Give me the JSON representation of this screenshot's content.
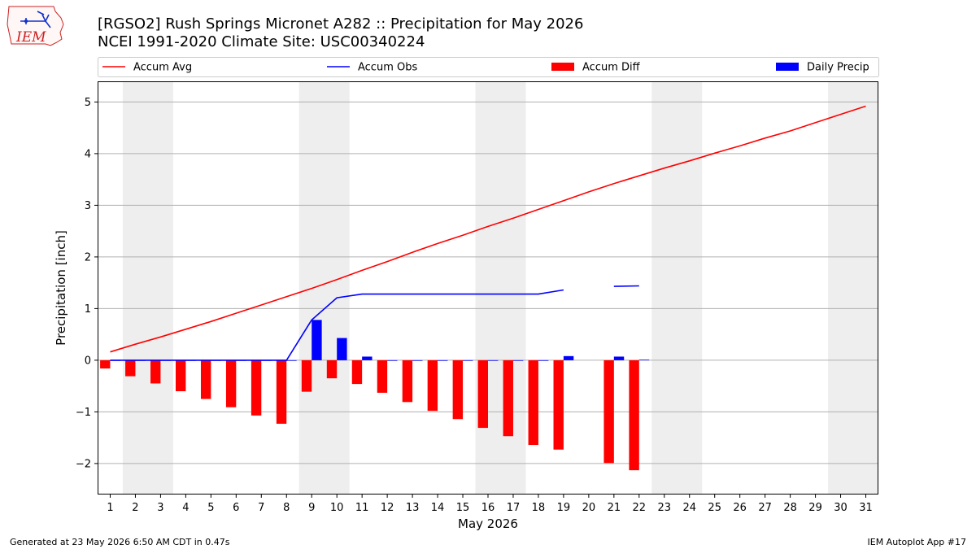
{
  "logo": {
    "text": "IEM"
  },
  "chart_data": {
    "type": "bar+line",
    "title": "[RGSO2] Rush Springs Micronet A282 :: Precipitation for May 2026",
    "subtitle": "NCEI 1991-2020 Climate Site: USC00340224",
    "xlabel": "May 2026",
    "ylabel": "Precipitation [inch]",
    "xlim": [
      0.5,
      31.5
    ],
    "ylim": [
      -2.6,
      5.4
    ],
    "yticks": [
      -2,
      -1,
      0,
      1,
      2,
      3,
      4,
      5
    ],
    "ytick_labels": [
      "−2",
      "−1",
      "0",
      "1",
      "2",
      "3",
      "4",
      "5"
    ],
    "days": [
      1,
      2,
      3,
      4,
      5,
      6,
      7,
      8,
      9,
      10,
      11,
      12,
      13,
      14,
      15,
      16,
      17,
      18,
      19,
      20,
      21,
      22,
      23,
      24,
      25,
      26,
      27,
      28,
      29,
      30,
      31
    ],
    "weekend_spans": [
      [
        1.5,
        3.5
      ],
      [
        8.5,
        10.5
      ],
      [
        15.5,
        17.5
      ],
      [
        22.5,
        24.5
      ],
      [
        29.5,
        31.5
      ]
    ],
    "grid": "horizontal",
    "legend_position": "top",
    "legend": [
      {
        "label": "Accum Avg",
        "kind": "line",
        "color": "#ff0000"
      },
      {
        "label": "Accum Obs",
        "kind": "line",
        "color": "#0000ff"
      },
      {
        "label": "Accum Diff",
        "kind": "bar",
        "color": "#ff0000"
      },
      {
        "label": "Daily Precip",
        "kind": "bar",
        "color": "#0000ff"
      }
    ],
    "series": [
      {
        "name": "Accum Avg",
        "type": "line",
        "color": "#ff0000",
        "x": [
          1,
          2,
          3,
          4,
          5,
          6,
          7,
          8,
          9,
          10,
          11,
          12,
          13,
          14,
          15,
          16,
          17,
          18,
          19,
          20,
          21,
          22,
          23,
          24,
          25,
          26,
          27,
          28,
          29,
          30,
          31
        ],
        "values": [
          0.16,
          0.31,
          0.45,
          0.6,
          0.75,
          0.91,
          1.07,
          1.23,
          1.39,
          1.56,
          1.74,
          1.91,
          2.09,
          2.26,
          2.42,
          2.59,
          2.75,
          2.92,
          3.09,
          3.26,
          3.42,
          3.57,
          3.72,
          3.86,
          4.01,
          4.15,
          4.3,
          4.44,
          4.6,
          4.76,
          4.92
        ]
      },
      {
        "name": "Accum Obs",
        "type": "line",
        "color": "#0000ff",
        "x": [
          1,
          2,
          3,
          4,
          5,
          6,
          7,
          8,
          9,
          10,
          11,
          12,
          13,
          14,
          15,
          16,
          17,
          18,
          19,
          20,
          21,
          22
        ],
        "values": [
          0.0,
          0.0,
          0.0,
          0.0,
          0.0,
          0.0,
          0.0,
          0.0,
          0.78,
          1.21,
          1.28,
          1.28,
          1.28,
          1.28,
          1.28,
          1.28,
          1.28,
          1.28,
          1.36,
          null,
          1.43,
          1.44
        ]
      },
      {
        "name": "Accum Diff",
        "type": "bar",
        "color": "#ff0000",
        "x": [
          1,
          2,
          3,
          4,
          5,
          6,
          7,
          8,
          9,
          10,
          11,
          12,
          13,
          14,
          15,
          16,
          17,
          18,
          19,
          20,
          21,
          22
        ],
        "values": [
          -0.16,
          -0.31,
          -0.45,
          -0.6,
          -0.75,
          -0.91,
          -1.07,
          -1.23,
          -0.61,
          -0.35,
          -0.46,
          -0.63,
          -0.81,
          -0.98,
          -1.14,
          -1.31,
          -1.47,
          -1.64,
          -1.73,
          null,
          -1.99,
          -2.13
        ]
      },
      {
        "name": "Daily Precip",
        "type": "bar",
        "color": "#0000ff",
        "x": [
          1,
          2,
          3,
          4,
          5,
          6,
          7,
          8,
          9,
          10,
          11,
          12,
          13,
          14,
          15,
          16,
          17,
          18,
          19,
          20,
          21,
          22
        ],
        "values": [
          0,
          0,
          0,
          0,
          0,
          0,
          0,
          0,
          0.78,
          0.43,
          0.07,
          0,
          0,
          0,
          0,
          0,
          0,
          0,
          0.08,
          null,
          0.07,
          0.01
        ]
      }
    ]
  },
  "footer": {
    "left": "Generated at 23 May 2026 6:50 AM CDT in 0.47s",
    "right": "IEM Autoplot App #17"
  }
}
